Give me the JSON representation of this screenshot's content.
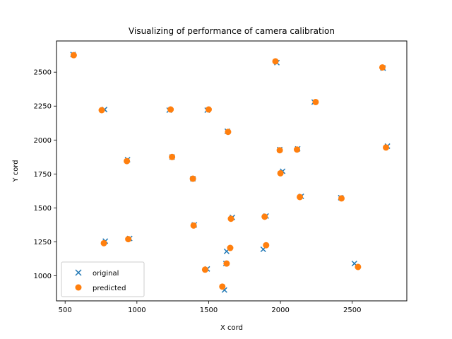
{
  "chart_data": {
    "type": "scatter",
    "title": "Visualizing of performance of camera calibration",
    "xlabel": "X cord",
    "ylabel": "Y cord",
    "xlim": [
      440,
      2880
    ],
    "ylim": [
      815,
      2730
    ],
    "xticks": [
      500,
      1000,
      1500,
      2000,
      2500
    ],
    "yticks": [
      1000,
      1250,
      1500,
      1750,
      2000,
      2250,
      2500
    ],
    "grid": false,
    "legend_position": "lower-left",
    "series": [
      {
        "name": "original",
        "marker": "x",
        "color": "#1f77b4",
        "x": [
          555,
          775,
          1225,
          1490,
          1975,
          2235,
          2715,
          1630,
          935,
          1245,
          1995,
          2120,
          2745,
          1390,
          2015,
          2145,
          2420,
          1400,
          1665,
          1900,
          780,
          950,
          1625,
          1880,
          1490,
          1620,
          1610,
          2515
        ],
        "y": [
          2630,
          2225,
          2220,
          2220,
          2570,
          2280,
          2530,
          2065,
          1855,
          1875,
          1930,
          1935,
          1955,
          1715,
          1770,
          1585,
          1575,
          1375,
          1430,
          1440,
          1255,
          1275,
          1180,
          1195,
          1050,
          1090,
          895,
          1090
        ]
      },
      {
        "name": "predicted",
        "marker": "o",
        "color": "#ff7f0e",
        "x": [
          560,
          755,
          1235,
          1500,
          1965,
          2245,
          2710,
          1635,
          930,
          1245,
          1995,
          2115,
          2735,
          1390,
          2000,
          2135,
          2425,
          1395,
          1655,
          1890,
          770,
          940,
          1650,
          1900,
          1475,
          1625,
          1595,
          2540
        ],
        "y": [
          2625,
          2220,
          2225,
          2225,
          2580,
          2280,
          2535,
          2060,
          1845,
          1875,
          1925,
          1930,
          1945,
          1715,
          1755,
          1580,
          1570,
          1370,
          1420,
          1435,
          1240,
          1270,
          1205,
          1225,
          1045,
          1090,
          920,
          1065
        ]
      }
    ]
  }
}
